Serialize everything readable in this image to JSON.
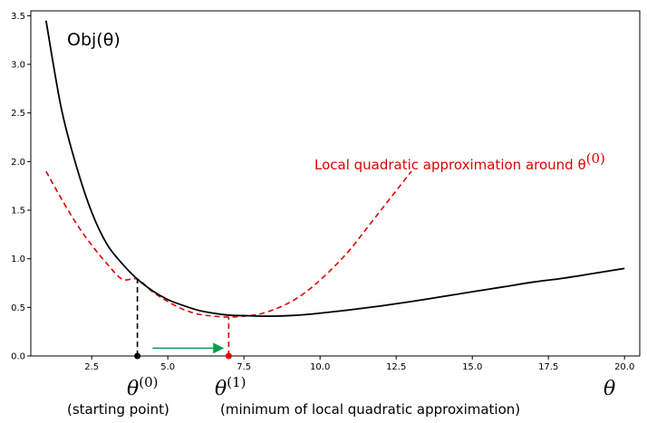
{
  "chart_data": {
    "type": "line",
    "xlim": [
      0.5,
      20.5
    ],
    "ylim": [
      0,
      3.55
    ],
    "x_ticks": [
      2.5,
      5.0,
      7.5,
      10.0,
      12.5,
      15.0,
      17.5,
      20.0
    ],
    "x_tick_labels": [
      "2.5",
      "5.0",
      "7.5",
      "10.0",
      "12.5",
      "15.0",
      "17.5",
      "20.0"
    ],
    "y_ticks": [
      0.0,
      0.5,
      1.0,
      1.5,
      2.0,
      2.5,
      3.0,
      3.5
    ],
    "y_tick_labels": [
      "0.0",
      "0.5",
      "1.0",
      "1.5",
      "2.0",
      "2.5",
      "3.0",
      "3.5"
    ],
    "grid": false,
    "series": [
      {
        "name": "Obj(θ)",
        "color": "#000000",
        "style": "solid",
        "x": [
          1.0,
          1.5,
          2.0,
          2.5,
          3.0,
          3.5,
          4.0,
          4.5,
          5.0,
          5.5,
          6.0,
          6.5,
          7.0,
          7.5,
          8.0,
          8.5,
          9.0,
          9.5,
          10.0,
          11.0,
          12.0,
          13.0,
          14.0,
          15.0,
          16.0,
          17.0,
          18.0,
          19.0,
          20.0
        ],
        "y": [
          3.45,
          2.55,
          1.95,
          1.48,
          1.15,
          0.95,
          0.79,
          0.67,
          0.58,
          0.52,
          0.47,
          0.44,
          0.42,
          0.415,
          0.41,
          0.41,
          0.415,
          0.425,
          0.44,
          0.475,
          0.515,
          0.56,
          0.61,
          0.66,
          0.71,
          0.76,
          0.8,
          0.85,
          0.9
        ]
      },
      {
        "name": "Local quadratic approximation around θ(0)",
        "color": "#e00000",
        "style": "dashed",
        "x": [
          1.0,
          1.5,
          2.0,
          2.5,
          3.0,
          3.5,
          4.0,
          4.5,
          5.0,
          5.5,
          6.0,
          6.5,
          7.0,
          7.5,
          8.0,
          8.5,
          9.0,
          9.5,
          10.0,
          10.5,
          11.0,
          11.5,
          12.0,
          12.5,
          13.0
        ],
        "y": [
          1.9,
          1.62,
          1.36,
          1.14,
          0.95,
          0.79,
          0.79,
          0.66,
          0.56,
          0.48,
          0.43,
          0.41,
          0.4,
          0.41,
          0.43,
          0.48,
          0.55,
          0.65,
          0.78,
          0.93,
          1.1,
          1.3,
          1.5,
          1.7,
          1.9
        ]
      }
    ],
    "points": [
      {
        "name": "θ(0)",
        "x": 4.0,
        "y": 0.0,
        "color": "#000000"
      },
      {
        "name": "θ(1)",
        "x": 7.0,
        "y": 0.0,
        "color": "#e00000"
      }
    ],
    "vlines": [
      {
        "x": 4.0,
        "y_top": 0.79,
        "color": "#000000"
      },
      {
        "x": 7.0,
        "y_top": 0.4,
        "color": "#e00000"
      }
    ],
    "arrow": {
      "x_from": 4.5,
      "x_to": 6.8,
      "y": 0.08,
      "color": "#00a050"
    },
    "annotations": {
      "obj_label": "Obj(θ)",
      "quad_label": "Local quadratic approximation around θ",
      "quad_label_sup": "(0)",
      "theta0": "θ",
      "theta0_sup": "(0)",
      "theta1": "θ",
      "theta1_sup": "(1)",
      "theta_axis": "θ",
      "start_caption": "(starting point)",
      "min_caption": "(minimum of local quadratic approximation)"
    }
  }
}
